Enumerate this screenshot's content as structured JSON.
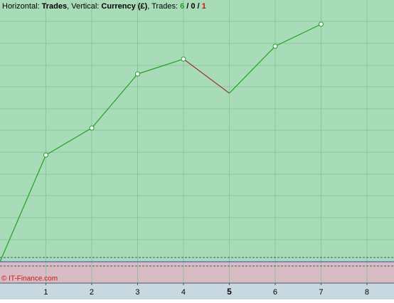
{
  "chart_data": {
    "type": "line",
    "title_parts": [
      {
        "text": "Horizontal: "
      },
      {
        "text": "Trades",
        "bold": true
      },
      {
        "text": ", Vertical: "
      },
      {
        "text": "Currency (£)",
        "bold": true
      },
      {
        "text": ", Trades: "
      },
      {
        "text": 6,
        "bold": true,
        "color": "#22a022"
      },
      {
        "text": " / ",
        "bold": true
      },
      {
        "text": 0,
        "bold": true,
        "color": "#000000"
      },
      {
        "text": " / ",
        "bold": true
      },
      {
        "text": 1,
        "bold": true,
        "color": "#cc1111"
      }
    ],
    "watermark": "© IT-Finance.com",
    "x": [
      0,
      1,
      2,
      3,
      4,
      5,
      6,
      7
    ],
    "series": [
      {
        "values": [
          0,
          150,
          188,
          264,
          285,
          237,
          303,
          334
        ],
        "color": "#22a022",
        "segment_colors": [
          "#22a022",
          "#22a022",
          "#22a022",
          "#22a022",
          "#a03030",
          "#22a022",
          "#22a022"
        ],
        "markers": [
          false,
          true,
          true,
          true,
          true,
          false,
          true,
          true
        ]
      }
    ],
    "xlim": [
      0,
      8.59
    ],
    "ylim": [
      -30,
      368
    ],
    "xticks": [
      1,
      2,
      3,
      4,
      5,
      6,
      7,
      8
    ],
    "highlight_xtick": 5,
    "yticks": [
      31,
      62,
      93,
      123,
      154,
      185,
      215,
      246,
      276,
      307,
      338
    ],
    "dashed_lines": [
      6,
      -6
    ],
    "baseline": 0,
    "grid": true
  }
}
